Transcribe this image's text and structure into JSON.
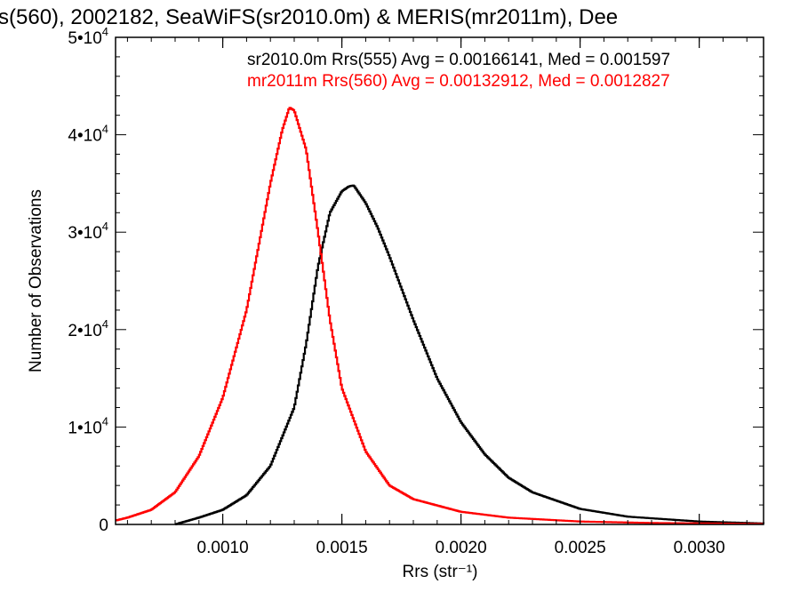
{
  "chart_data": {
    "type": "line",
    "title": "s(560), 2002182, SeaWiFS(sr2010.0m) & MERIS(mr2011m), Dee",
    "xlabel": "Rrs (str⁻¹)",
    "ylabel": "Number of Observations",
    "xlim": [
      0.00055,
      0.00327
    ],
    "ylim": [
      0,
      50000
    ],
    "x_ticks": [
      0.001,
      0.0015,
      0.002,
      0.0025,
      0.003
    ],
    "x_tick_labels": [
      "0.0010",
      "0.0015",
      "0.0020",
      "0.0025",
      "0.0030"
    ],
    "y_ticks": [
      {
        "value": 0,
        "mantissa": "0",
        "exponent": ""
      },
      {
        "value": 10000,
        "mantissa": "1•10",
        "exponent": "4"
      },
      {
        "value": 20000,
        "mantissa": "2•10",
        "exponent": "4"
      },
      {
        "value": 30000,
        "mantissa": "3•10",
        "exponent": "4"
      },
      {
        "value": 40000,
        "mantissa": "4•10",
        "exponent": "4"
      },
      {
        "value": 50000,
        "mantissa": "5•10",
        "exponent": "4"
      }
    ],
    "grid": false,
    "style": "step",
    "annotations": [
      {
        "text": "sr2010.0m Rrs(555) Avg = 0.00166141, Med = 0.001597",
        "color": "#000000"
      },
      {
        "text": "mr2011m Rrs(560) Avg = 0.00132912, Med = 0.0012827",
        "color": "#ff0000"
      }
    ],
    "series": [
      {
        "color": "#000000",
        "x": [
          0.0008,
          0.0009,
          0.001,
          0.0011,
          0.0012,
          0.0013,
          0.00135,
          0.0014,
          0.00145,
          0.0015,
          0.00153,
          0.00155,
          0.0016,
          0.00165,
          0.0017,
          0.0018,
          0.0019,
          0.002,
          0.0021,
          0.0022,
          0.0023,
          0.0025,
          0.0027,
          0.003,
          0.00327
        ],
        "y": [
          0,
          700,
          1500,
          3000,
          6000,
          12000,
          18500,
          26500,
          32000,
          34200,
          34700,
          34800,
          33000,
          30500,
          27500,
          21000,
          15000,
          10500,
          7200,
          4800,
          3300,
          1600,
          800,
          300,
          100
        ]
      },
      {
        "color": "#ff0000",
        "x": [
          0.00055,
          0.0006,
          0.0007,
          0.0008,
          0.0009,
          0.001,
          0.0011,
          0.00115,
          0.0012,
          0.00125,
          0.00128,
          0.0013,
          0.00135,
          0.0014,
          0.00145,
          0.0015,
          0.0016,
          0.0017,
          0.0018,
          0.002,
          0.0022,
          0.0025,
          0.0028,
          0.00327
        ],
        "y": [
          400,
          700,
          1500,
          3300,
          7000,
          13000,
          22000,
          28500,
          35000,
          40500,
          42800,
          42500,
          38500,
          30000,
          21000,
          14000,
          7500,
          4000,
          2600,
          1300,
          700,
          300,
          150,
          50
        ]
      }
    ]
  }
}
